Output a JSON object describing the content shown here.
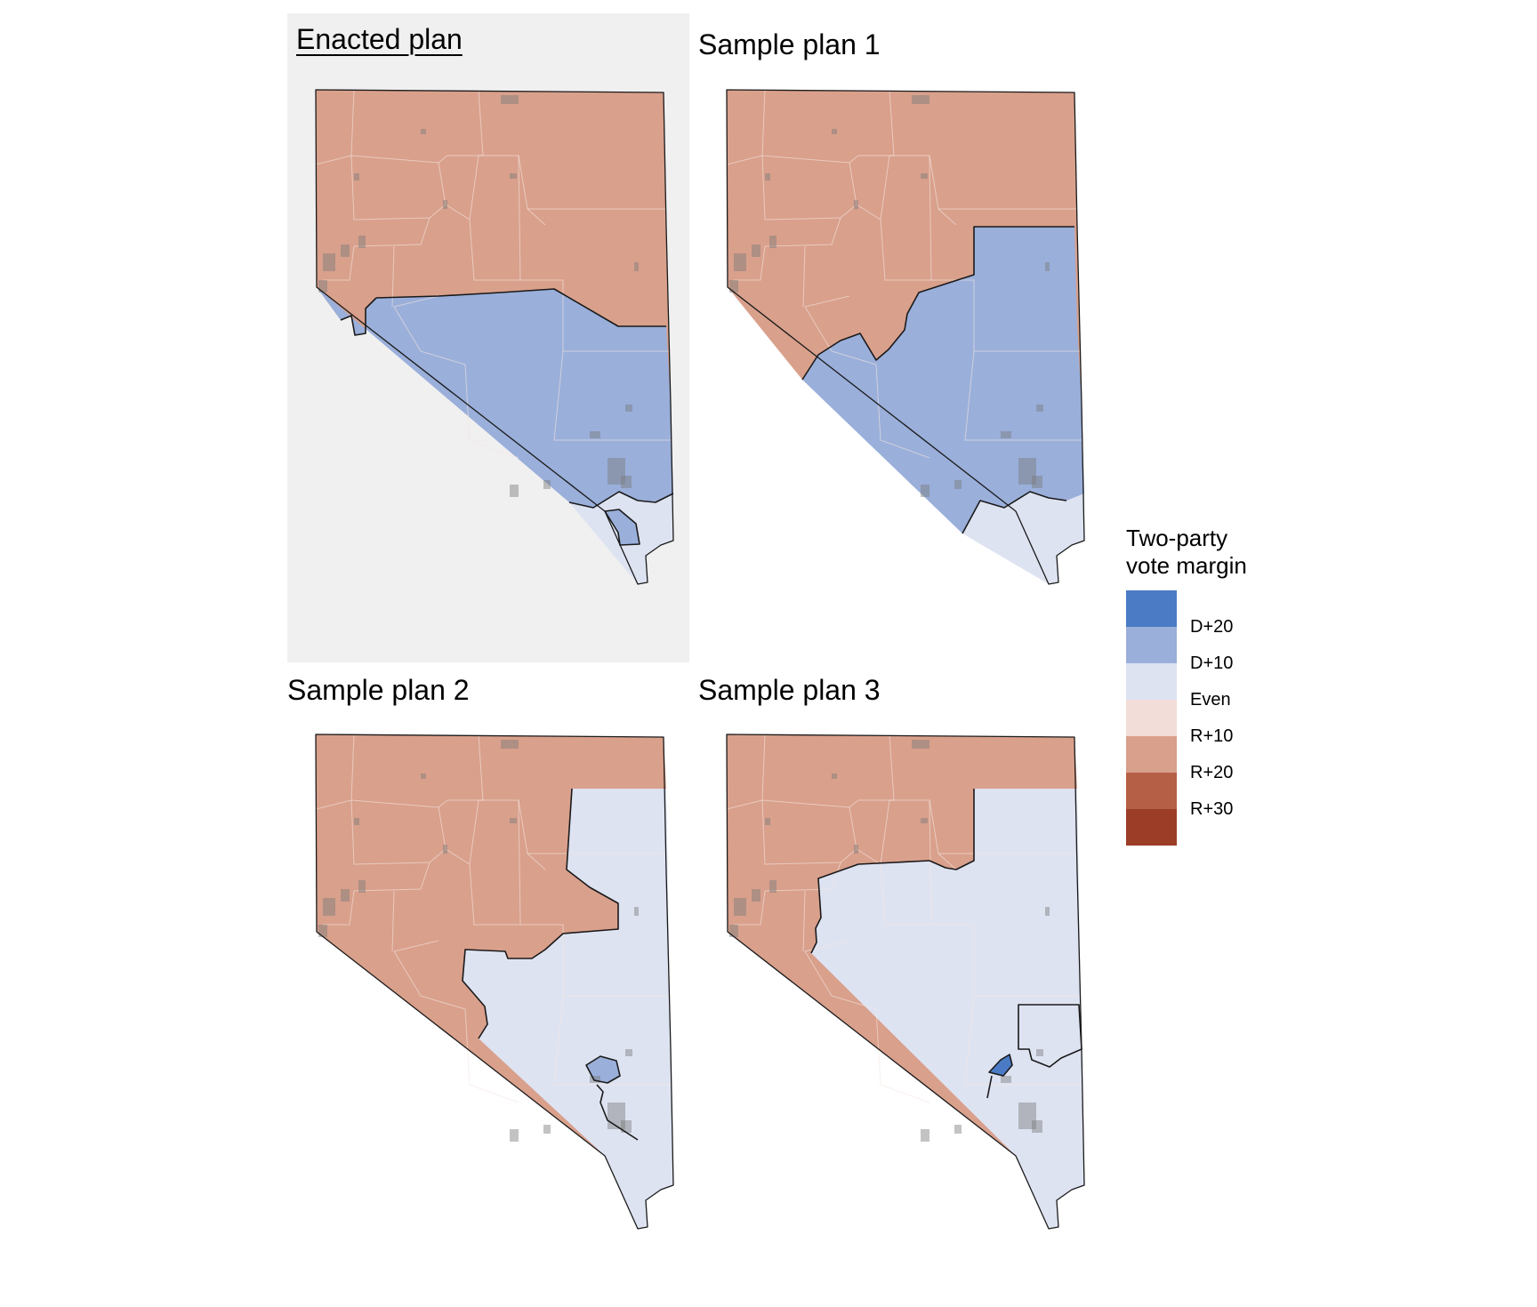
{
  "panels": [
    {
      "title": "Enacted plan",
      "highlighted": true,
      "underlined": true
    },
    {
      "title": "Sample plan 1",
      "highlighted": false,
      "underlined": false
    },
    {
      "title": "Sample plan 2",
      "highlighted": false,
      "underlined": false
    },
    {
      "title": "Sample plan 3",
      "highlighted": false,
      "underlined": false
    }
  ],
  "legend": {
    "title_line1": "Two-party",
    "title_line2": "vote margin",
    "swatches": [
      "#4a7bc4",
      "#9aafda",
      "#dee3f2",
      "#f2ddd8",
      "#d9a08c",
      "#b56046",
      "#9c3d28"
    ],
    "labels": [
      "D+20",
      "D+10",
      "Even",
      "R+10",
      "R+20",
      "R+30"
    ]
  },
  "colors": {
    "republican_district": "#d9a08c",
    "democratic_district": "#9aafda",
    "even_district": "#dee3f2",
    "strong_dem_district": "#4a7bc4",
    "county_lines": "#f3e6e0",
    "state_outline": "#1a1a1a",
    "urban_overlay": "#7a7a7a",
    "highlight_background": "#f0f0f0"
  }
}
